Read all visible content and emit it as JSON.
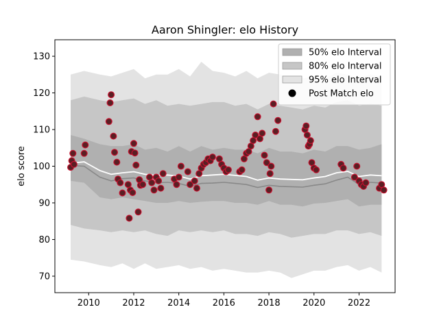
{
  "chart_data": {
    "type": "line",
    "title": "Aaron Shingler: elo History",
    "xlabel": "",
    "ylabel": "elo score",
    "xlim": [
      2008.5,
      2023.6
    ],
    "ylim": [
      65.5,
      134.5
    ],
    "xticks": [
      2010,
      2012,
      2014,
      2016,
      2018,
      2020,
      2022
    ],
    "yticks": [
      70,
      80,
      90,
      100,
      110,
      120,
      130
    ],
    "grid": false,
    "legend_position": "top-right",
    "legend": [
      "50% elo Interval",
      "80% elo Interval",
      "95% elo Interval",
      "Post Match elo"
    ],
    "colors": {
      "band50": "#b0b0b0",
      "band80": "#c6c6c6",
      "band95": "#e3e3e3",
      "mean_line": "#ffffff",
      "median_line": "#888888",
      "point_fill": "#5a1f24",
      "point_edge": "#c8102e"
    },
    "intervals": {
      "x": [
        2009.2,
        2009.8,
        2010.5,
        2011.0,
        2011.5,
        2012.0,
        2012.5,
        2013.0,
        2013.5,
        2014.0,
        2014.5,
        2015.0,
        2015.5,
        2016.0,
        2016.5,
        2017.0,
        2017.5,
        2018.0,
        2018.5,
        2019.0,
        2019.5,
        2020.0,
        2020.5,
        2021.0,
        2021.5,
        2022.0,
        2022.5,
        2023.0
      ],
      "mean": [
        100.8,
        101.2,
        98.8,
        97.8,
        98.2,
        98.5,
        97.8,
        97.5,
        97.6,
        97.3,
        96.5,
        97.4,
        97.6,
        97.8,
        97.5,
        97.2,
        96.2,
        96.8,
        96.5,
        96.4,
        96.3,
        96.8,
        97.2,
        98.2,
        98.6,
        97.2,
        97.6,
        97.4
      ],
      "median": [
        100.2,
        100.0,
        97.0,
        96.0,
        96.6,
        96.8,
        96.0,
        95.5,
        95.6,
        95.3,
        94.5,
        95.3,
        95.4,
        95.6,
        95.3,
        95.0,
        94.2,
        94.8,
        94.5,
        94.4,
        94.3,
        94.8,
        95.2,
        96.2,
        97.0,
        95.0,
        95.6,
        95.4
      ],
      "p50_lo": [
        96.0,
        95.5,
        91.5,
        91.0,
        91.5,
        91.0,
        90.5,
        90.0,
        90.0,
        90.5,
        90.0,
        90.3,
        90.5,
        90.5,
        90.0,
        90.0,
        89.5,
        90.5,
        89.5,
        89.5,
        89.0,
        89.8,
        90.0,
        90.5,
        91.0,
        89.0,
        89.5,
        89.5
      ],
      "p50_hi": [
        108.5,
        107.5,
        106.0,
        105.5,
        105.5,
        106.0,
        104.5,
        105.0,
        104.0,
        105.5,
        104.0,
        105.5,
        104.5,
        105.0,
        104.5,
        104.5,
        103.5,
        105.0,
        104.0,
        104.0,
        103.5,
        104.5,
        104.0,
        105.5,
        105.5,
        104.5,
        105.0,
        106.0
      ],
      "p80_lo": [
        84.0,
        83.0,
        82.5,
        82.0,
        82.5,
        82.0,
        82.5,
        81.5,
        81.0,
        82.5,
        82.0,
        82.5,
        82.0,
        82.5,
        81.5,
        81.5,
        81.0,
        82.0,
        81.5,
        80.5,
        81.0,
        81.5,
        81.5,
        82.5,
        82.5,
        81.5,
        82.0,
        81.0
      ],
      "p80_hi": [
        118.0,
        119.0,
        118.0,
        117.5,
        118.0,
        118.5,
        117.0,
        118.0,
        116.5,
        117.0,
        116.5,
        117.0,
        117.5,
        117.5,
        116.5,
        117.0,
        115.5,
        117.0,
        116.5,
        116.0,
        115.5,
        116.5,
        116.0,
        117.5,
        118.0,
        116.5,
        117.0,
        116.5
      ],
      "p95_lo": [
        74.5,
        74.0,
        73.0,
        72.5,
        73.5,
        72.0,
        73.5,
        72.0,
        72.5,
        73.0,
        72.0,
        72.5,
        71.5,
        72.0,
        71.5,
        71.0,
        71.0,
        71.5,
        71.0,
        69.5,
        70.5,
        71.5,
        71.5,
        72.5,
        73.0,
        71.5,
        72.5,
        71.0
      ],
      "p95_hi": [
        125.0,
        126.0,
        125.0,
        124.5,
        125.5,
        126.5,
        124.0,
        125.0,
        125.0,
        126.5,
        124.5,
        128.5,
        126.0,
        125.5,
        124.5,
        126.0,
        124.0,
        125.5,
        125.0,
        124.0,
        124.0,
        124.5,
        124.0,
        125.5,
        125.0,
        124.0,
        125.0,
        124.5
      ]
    },
    "points": {
      "x": [
        2009.2,
        2009.25,
        2009.3,
        2009.35,
        2009.8,
        2009.85,
        2010.9,
        2010.95,
        2011.0,
        2011.1,
        2011.15,
        2011.25,
        2011.3,
        2011.4,
        2011.5,
        2011.75,
        2011.8,
        2011.85,
        2011.9,
        2011.95,
        2012.0,
        2012.05,
        2012.1,
        2012.2,
        2012.25,
        2012.3,
        2012.4,
        2012.7,
        2012.8,
        2012.9,
        2013.0,
        2013.1,
        2013.2,
        2013.3,
        2013.8,
        2013.9,
        2014.0,
        2014.1,
        2014.4,
        2014.5,
        2014.7,
        2014.8,
        2014.9,
        2015.0,
        2015.1,
        2015.2,
        2015.3,
        2015.4,
        2015.5,
        2015.8,
        2015.9,
        2016.0,
        2016.1,
        2016.2,
        2016.7,
        2016.8,
        2016.9,
        2017.0,
        2017.1,
        2017.2,
        2017.3,
        2017.4,
        2017.5,
        2017.6,
        2017.7,
        2017.8,
        2017.9,
        2018.0,
        2018.05,
        2018.1,
        2018.2,
        2018.3,
        2018.4,
        2019.6,
        2019.65,
        2019.7,
        2019.75,
        2019.8,
        2019.85,
        2019.9,
        2020.0,
        2020.1,
        2021.2,
        2021.3,
        2021.8,
        2021.9,
        2022.0,
        2022.1,
        2022.2,
        2022.3,
        2022.9,
        2023.0,
        2023.1
      ],
      "y": [
        99.7,
        101.5,
        103.5,
        100.5,
        103.5,
        105.8,
        112.2,
        117.3,
        119.5,
        108.2,
        103.8,
        101.1,
        96.5,
        95.5,
        92.7,
        95.0,
        85.8,
        93.5,
        104.0,
        92.8,
        106.2,
        103.6,
        100.3,
        87.5,
        96.3,
        94.8,
        95.0,
        97.0,
        95.5,
        93.5,
        97.0,
        96.0,
        94.0,
        98.0,
        96.5,
        95.0,
        97.0,
        100.0,
        98.5,
        95.0,
        96.0,
        94.0,
        98.0,
        99.5,
        100.5,
        101.0,
        102.0,
        101.5,
        102.5,
        102.0,
        100.5,
        99.5,
        98.5,
        99.0,
        98.5,
        99.0,
        102.0,
        103.5,
        104.0,
        105.5,
        107.0,
        108.5,
        113.5,
        107.5,
        109.0,
        103.0,
        101.0,
        93.5,
        98.0,
        100.0,
        117.0,
        109.5,
        112.5,
        110.0,
        111.0,
        108.5,
        105.5,
        106.0,
        107.0,
        101.0,
        99.5,
        99.0,
        100.5,
        99.5,
        97.0,
        100.0,
        96.0,
        95.0,
        94.5,
        95.5,
        94.0,
        95.0,
        93.5
      ]
    }
  }
}
